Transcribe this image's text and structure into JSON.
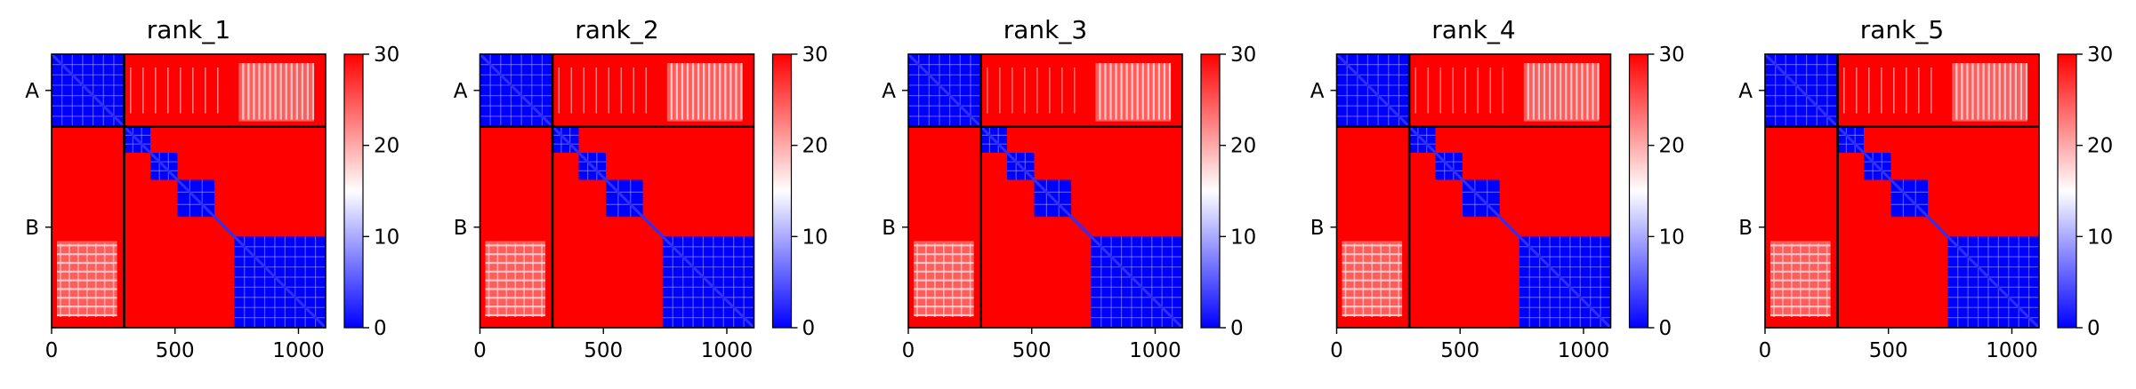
{
  "figure": {
    "panels": [
      {
        "title": "rank_1"
      },
      {
        "title": "rank_2"
      },
      {
        "title": "rank_3"
      },
      {
        "title": "rank_4"
      },
      {
        "title": "rank_5"
      }
    ]
  },
  "colors": {
    "high": "#ff0000",
    "mid": "#ffffff",
    "low": "#0000ff"
  },
  "chart_data": [
    {
      "type": "heatmap",
      "title": "rank_1",
      "xlim": [
        0,
        1110
      ],
      "ylim": [
        1110,
        0
      ],
      "x_ticks": [
        0,
        500,
        1000
      ],
      "x_tick_labels": [
        "0",
        "500",
        "1000"
      ],
      "y_tick_labels": [
        "A",
        "B"
      ],
      "chain_boundary": 294,
      "chains": [
        {
          "name": "A",
          "start": 0,
          "end": 294
        },
        {
          "name": "B",
          "start": 294,
          "end": 1110
        }
      ],
      "colorbar": {
        "min": 0,
        "max": 30,
        "ticks": [
          0,
          10,
          20,
          30
        ],
        "tick_labels": [
          "0",
          "10",
          "20",
          "30"
        ],
        "colormap": "bwr"
      },
      "low_error_blocks": [
        [
          0,
          294
        ],
        [
          294,
          400
        ],
        [
          400,
          510
        ],
        [
          510,
          660
        ],
        [
          740,
          1110
        ]
      ]
    },
    {
      "type": "heatmap",
      "title": "rank_2",
      "xlim": [
        0,
        1110
      ],
      "ylim": [
        1110,
        0
      ],
      "x_ticks": [
        0,
        500,
        1000
      ],
      "x_tick_labels": [
        "0",
        "500",
        "1000"
      ],
      "y_tick_labels": [
        "A",
        "B"
      ],
      "chain_boundary": 294,
      "chains": [
        {
          "name": "A",
          "start": 0,
          "end": 294
        },
        {
          "name": "B",
          "start": 294,
          "end": 1110
        }
      ],
      "colorbar": {
        "min": 0,
        "max": 30,
        "ticks": [
          0,
          10,
          20,
          30
        ],
        "tick_labels": [
          "0",
          "10",
          "20",
          "30"
        ],
        "colormap": "bwr"
      },
      "low_error_blocks": [
        [
          0,
          294
        ],
        [
          294,
          400
        ],
        [
          400,
          510
        ],
        [
          510,
          660
        ],
        [
          740,
          1110
        ]
      ]
    },
    {
      "type": "heatmap",
      "title": "rank_3",
      "xlim": [
        0,
        1110
      ],
      "ylim": [
        1110,
        0
      ],
      "x_ticks": [
        0,
        500,
        1000
      ],
      "x_tick_labels": [
        "0",
        "500",
        "1000"
      ],
      "y_tick_labels": [
        "A",
        "B"
      ],
      "chain_boundary": 294,
      "chains": [
        {
          "name": "A",
          "start": 0,
          "end": 294
        },
        {
          "name": "B",
          "start": 294,
          "end": 1110
        }
      ],
      "colorbar": {
        "min": 0,
        "max": 30,
        "ticks": [
          0,
          10,
          20,
          30
        ],
        "tick_labels": [
          "0",
          "10",
          "20",
          "30"
        ],
        "colormap": "bwr"
      },
      "low_error_blocks": [
        [
          0,
          294
        ],
        [
          294,
          400
        ],
        [
          400,
          510
        ],
        [
          510,
          660
        ],
        [
          740,
          1110
        ]
      ]
    },
    {
      "type": "heatmap",
      "title": "rank_4",
      "xlim": [
        0,
        1110
      ],
      "ylim": [
        1110,
        0
      ],
      "x_ticks": [
        0,
        500,
        1000
      ],
      "x_tick_labels": [
        "0",
        "500",
        "1000"
      ],
      "y_tick_labels": [
        "A",
        "B"
      ],
      "chain_boundary": 294,
      "chains": [
        {
          "name": "A",
          "start": 0,
          "end": 294
        },
        {
          "name": "B",
          "start": 294,
          "end": 1110
        }
      ],
      "colorbar": {
        "min": 0,
        "max": 30,
        "ticks": [
          0,
          10,
          20,
          30
        ],
        "tick_labels": [
          "0",
          "10",
          "20",
          "30"
        ],
        "colormap": "bwr"
      },
      "low_error_blocks": [
        [
          0,
          294
        ],
        [
          294,
          400
        ],
        [
          400,
          510
        ],
        [
          510,
          660
        ],
        [
          740,
          1110
        ]
      ]
    },
    {
      "type": "heatmap",
      "title": "rank_5",
      "xlim": [
        0,
        1110
      ],
      "ylim": [
        1110,
        0
      ],
      "x_ticks": [
        0,
        500,
        1000
      ],
      "x_tick_labels": [
        "0",
        "500",
        "1000"
      ],
      "y_tick_labels": [
        "A",
        "B"
      ],
      "chain_boundary": 294,
      "chains": [
        {
          "name": "A",
          "start": 0,
          "end": 294
        },
        {
          "name": "B",
          "start": 294,
          "end": 1110
        }
      ],
      "colorbar": {
        "min": 0,
        "max": 30,
        "ticks": [
          0,
          10,
          20,
          30
        ],
        "tick_labels": [
          "0",
          "10",
          "20",
          "30"
        ],
        "colormap": "bwr"
      },
      "low_error_blocks": [
        [
          0,
          294
        ],
        [
          294,
          400
        ],
        [
          400,
          510
        ],
        [
          510,
          660
        ],
        [
          740,
          1110
        ]
      ]
    }
  ]
}
